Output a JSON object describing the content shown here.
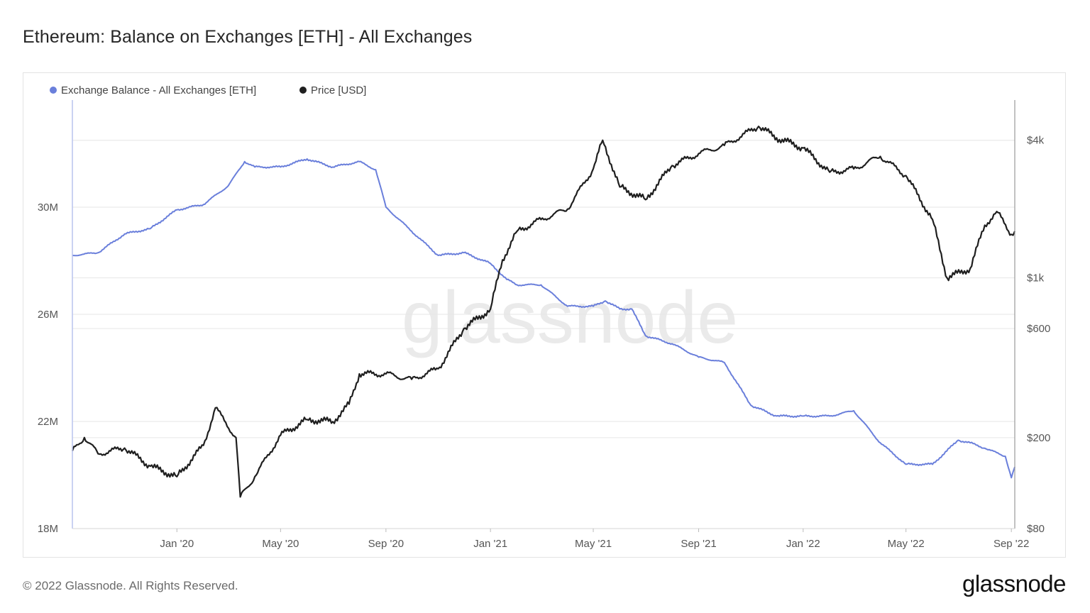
{
  "title": "Ethereum: Balance on Exchanges [ETH] - All Exchanges",
  "footer": {
    "copyright": "© 2022 Glassnode. All Rights Reserved.",
    "logo": "glassnode"
  },
  "watermark": "glassnode",
  "colors": {
    "balance": "#6a7fdb",
    "price": "#1f1f1f",
    "grid": "#e6e6e6",
    "axis": "#b9c3ee"
  },
  "chart_data": {
    "type": "line",
    "title": "Ethereum: Balance on Exchanges [ETH] - All Exchanges",
    "x_range": [
      "2019-09-01",
      "2022-09-05"
    ],
    "x_ticks": [
      {
        "date": "2020-01-01",
        "label": "Jan '20"
      },
      {
        "date": "2020-05-01",
        "label": "May '20"
      },
      {
        "date": "2020-09-01",
        "label": "Sep '20"
      },
      {
        "date": "2021-01-01",
        "label": "Jan '21"
      },
      {
        "date": "2021-05-01",
        "label": "May '21"
      },
      {
        "date": "2021-09-01",
        "label": "Sep '21"
      },
      {
        "date": "2022-01-01",
        "label": "Jan '22"
      },
      {
        "date": "2022-05-01",
        "label": "May '22"
      },
      {
        "date": "2022-09-01",
        "label": "Sep '22"
      }
    ],
    "y_left": {
      "scale": "linear",
      "range": [
        18000000,
        34000000
      ],
      "ticks": [
        {
          "value": 18000000,
          "label": "18M"
        },
        {
          "value": 22000000,
          "label": "22M"
        },
        {
          "value": 26000000,
          "label": "26M"
        },
        {
          "value": 30000000,
          "label": "30M"
        }
      ]
    },
    "y_right": {
      "scale": "log",
      "range": [
        80,
        6000
      ],
      "ticks": [
        {
          "value": 80,
          "label": "$80"
        },
        {
          "value": 200,
          "label": "$200"
        },
        {
          "value": 600,
          "label": "$600"
        },
        {
          "value": 1000,
          "label": "$1k"
        },
        {
          "value": 4000,
          "label": "$4k"
        }
      ]
    },
    "grid": true,
    "legend_position": "top-left",
    "series": [
      {
        "name": "Exchange Balance - All Exchanges [ETH]",
        "axis": "left",
        "color": "#6a7fdb",
        "points": [
          [
            "2019-09-01",
            28200000
          ],
          [
            "2019-10-01",
            28300000
          ],
          [
            "2019-11-01",
            29000000
          ],
          [
            "2019-12-01",
            29200000
          ],
          [
            "2020-01-01",
            29900000
          ],
          [
            "2020-02-01",
            30100000
          ],
          [
            "2020-03-01",
            30800000
          ],
          [
            "2020-03-20",
            31700000
          ],
          [
            "2020-04-01",
            31500000
          ],
          [
            "2020-05-01",
            31500000
          ],
          [
            "2020-06-01",
            31800000
          ],
          [
            "2020-07-01",
            31500000
          ],
          [
            "2020-08-01",
            31700000
          ],
          [
            "2020-08-20",
            31400000
          ],
          [
            "2020-09-01",
            30000000
          ],
          [
            "2020-10-01",
            29100000
          ],
          [
            "2020-11-01",
            28200000
          ],
          [
            "2020-12-01",
            28300000
          ],
          [
            "2021-01-01",
            27900000
          ],
          [
            "2021-01-20",
            27300000
          ],
          [
            "2021-02-01",
            27100000
          ],
          [
            "2021-03-01",
            27100000
          ],
          [
            "2021-04-01",
            26300000
          ],
          [
            "2021-05-01",
            26300000
          ],
          [
            "2021-05-15",
            26500000
          ],
          [
            "2021-06-01",
            26200000
          ],
          [
            "2021-06-15",
            26200000
          ],
          [
            "2021-07-01",
            25200000
          ],
          [
            "2021-08-01",
            24900000
          ],
          [
            "2021-09-01",
            24400000
          ],
          [
            "2021-10-01",
            24200000
          ],
          [
            "2021-11-01",
            22600000
          ],
          [
            "2021-12-01",
            22200000
          ],
          [
            "2022-01-01",
            22200000
          ],
          [
            "2022-02-01",
            22200000
          ],
          [
            "2022-03-01",
            22400000
          ],
          [
            "2022-04-01",
            21200000
          ],
          [
            "2022-05-01",
            20400000
          ],
          [
            "2022-06-01",
            20400000
          ],
          [
            "2022-07-01",
            21300000
          ],
          [
            "2022-07-15",
            21200000
          ],
          [
            "2022-08-01",
            21000000
          ],
          [
            "2022-08-25",
            20700000
          ],
          [
            "2022-09-01",
            19900000
          ],
          [
            "2022-09-05",
            20300000
          ]
        ]
      },
      {
        "name": "Price [USD]",
        "axis": "right",
        "color": "#1f1f1f",
        "points": [
          [
            "2019-09-01",
            175
          ],
          [
            "2019-09-15",
            200
          ],
          [
            "2019-10-01",
            170
          ],
          [
            "2019-11-01",
            180
          ],
          [
            "2019-12-01",
            150
          ],
          [
            "2020-01-01",
            135
          ],
          [
            "2020-02-01",
            185
          ],
          [
            "2020-02-15",
            270
          ],
          [
            "2020-03-10",
            200
          ],
          [
            "2020-03-15",
            110
          ],
          [
            "2020-04-01",
            135
          ],
          [
            "2020-05-01",
            205
          ],
          [
            "2020-06-01",
            240
          ],
          [
            "2020-07-01",
            235
          ],
          [
            "2020-07-20",
            280
          ],
          [
            "2020-08-01",
            380
          ],
          [
            "2020-09-01",
            380
          ],
          [
            "2020-10-01",
            360
          ],
          [
            "2020-11-01",
            400
          ],
          [
            "2020-12-01",
            600
          ],
          [
            "2021-01-01",
            730
          ],
          [
            "2021-01-15",
            1200
          ],
          [
            "2021-02-01",
            1600
          ],
          [
            "2021-03-01",
            1800
          ],
          [
            "2021-04-01",
            2000
          ],
          [
            "2021-05-01",
            3000
          ],
          [
            "2021-05-12",
            4000
          ],
          [
            "2021-06-01",
            2500
          ],
          [
            "2021-07-01",
            2200
          ],
          [
            "2021-08-01",
            3100
          ],
          [
            "2021-09-01",
            3500
          ],
          [
            "2021-10-01",
            3800
          ],
          [
            "2021-11-10",
            4600
          ],
          [
            "2021-12-01",
            4100
          ],
          [
            "2022-01-01",
            3700
          ],
          [
            "2022-02-01",
            2900
          ],
          [
            "2022-03-01",
            3000
          ],
          [
            "2022-04-01",
            3400
          ],
          [
            "2022-05-01",
            2800
          ],
          [
            "2022-06-01",
            1800
          ],
          [
            "2022-06-18",
            1000
          ],
          [
            "2022-07-15",
            1100
          ],
          [
            "2022-08-01",
            1700
          ],
          [
            "2022-08-15",
            1950
          ],
          [
            "2022-09-01",
            1550
          ],
          [
            "2022-09-05",
            1600
          ]
        ]
      }
    ]
  }
}
